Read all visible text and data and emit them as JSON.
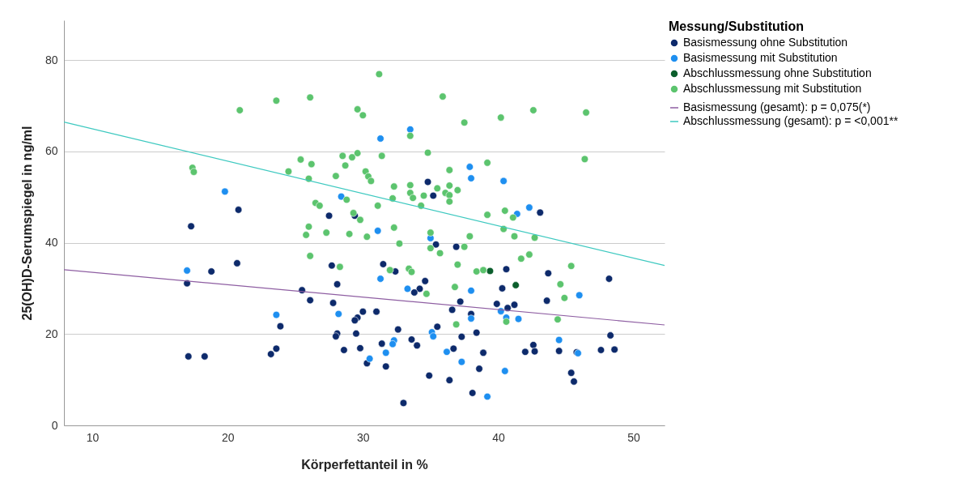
{
  "chart_data": {
    "type": "scatter",
    "xlabel": "Körperfettanteil in %",
    "ylabel": "25(OH)D-Serumspiegel in ng/ml",
    "legend_title": "Messung/Substitution",
    "legend": "right",
    "grid": "y",
    "marker": "circle",
    "xlim": [
      7.9,
      52.3
    ],
    "ylim": [
      0,
      88.7
    ],
    "xticks": [
      10,
      20,
      30,
      40,
      50
    ],
    "yticks": [
      0,
      20,
      40,
      60,
      80
    ],
    "series": [
      {
        "name": "Basismessung ohne Substitution",
        "color": "#0d2a6b",
        "x": [
          17.3,
          20.8,
          34.8,
          35.2,
          27.5,
          29.4,
          35.4,
          36.9,
          43.1,
          17.0,
          18.8,
          20.7,
          17.1,
          18.3,
          23.2,
          27.7,
          31.5,
          32.4,
          34.6,
          34.2,
          33.8,
          37.2,
          36.6,
          38.0,
          38.4,
          25.5,
          26.1,
          27.8,
          28.1,
          23.9,
          30.0,
          29.6,
          29.4,
          31.0,
          28.1,
          28.0,
          29.5,
          32.6,
          35.5,
          33.6,
          34.0,
          31.4,
          31.7,
          29.8,
          28.6,
          30.3,
          23.6,
          36.7,
          37.3,
          34.9,
          36.4,
          38.1,
          33.0,
          40.6,
          43.7,
          48.2,
          40.3,
          43.6,
          39.9,
          40.7,
          41.2,
          48.3,
          38.9,
          42.0,
          42.6,
          42.7,
          44.5,
          45.8,
          47.6,
          48.6,
          38.6,
          45.4,
          45.6
        ],
        "values": [
          43.6,
          47.2,
          53.3,
          50.3,
          45.9,
          45.9,
          39.6,
          39.1,
          46.6,
          31.1,
          33.7,
          35.5,
          15.1,
          15.1,
          15.6,
          35.0,
          35.3,
          33.7,
          31.6,
          29.9,
          29.1,
          27.1,
          25.3,
          24.4,
          20.3,
          29.6,
          27.4,
          26.8,
          30.9,
          21.7,
          24.9,
          23.6,
          23.0,
          24.9,
          20.1,
          19.5,
          20.1,
          21.0,
          21.6,
          18.8,
          17.5,
          17.9,
          12.9,
          16.9,
          16.5,
          13.6,
          16.8,
          16.8,
          19.4,
          10.9,
          9.9,
          7.1,
          4.9,
          34.2,
          33.3,
          32.1,
          30.0,
          27.3,
          26.6,
          25.7,
          26.4,
          19.7,
          15.9,
          16.1,
          17.6,
          16.2,
          16.3,
          16.0,
          16.5,
          16.6,
          12.4,
          11.5,
          9.6
        ]
      },
      {
        "name": "Basismessung mit Substitution",
        "color": "#1e8ff0",
        "x": [
          19.8,
          33.5,
          31.3,
          37.9,
          38.0,
          28.4,
          31.1,
          35.0,
          40.4,
          42.3,
          41.4,
          17.0,
          23.6,
          31.3,
          33.3,
          38.0,
          38.0,
          28.2,
          35.1,
          35.2,
          32.3,
          32.2,
          31.7,
          30.5,
          36.2,
          37.3,
          40.2,
          40.6,
          41.5,
          46.0,
          44.5,
          45.9,
          40.5,
          39.2
        ],
        "values": [
          51.2,
          64.8,
          62.8,
          56.6,
          54.1,
          50.1,
          42.6,
          41.0,
          53.5,
          47.7,
          46.3,
          33.9,
          24.2,
          32.1,
          29.9,
          29.5,
          23.4,
          24.4,
          20.4,
          19.5,
          18.6,
          17.8,
          15.9,
          14.6,
          16.1,
          13.9,
          25.0,
          23.6,
          23.3,
          28.5,
          18.7,
          15.8,
          11.9,
          6.3
        ]
      },
      {
        "name": "Abschlussmessung ohne Substitution",
        "color": "#0b5e2c",
        "x": [
          39.4,
          41.3
        ],
        "values": [
          33.8,
          30.7
        ]
      },
      {
        "name": "Abschlussmessung mit Substitution",
        "color": "#5cc46e",
        "x": [
          20.9,
          17.4,
          17.5,
          31.2,
          23.6,
          26.1,
          35.9,
          29.6,
          30.0,
          37.5,
          33.5,
          34.8,
          31.4,
          29.6,
          29.2,
          28.5,
          25.4,
          26.2,
          28.7,
          24.5,
          26.0,
          28.0,
          30.2,
          30.4,
          30.6,
          36.4,
          32.3,
          33.5,
          35.5,
          36.4,
          37.0,
          36.1,
          36.4,
          36.4,
          33.5,
          33.7,
          34.5,
          32.2,
          34.3,
          31.1,
          28.8,
          26.5,
          26.8,
          29.3,
          29.8,
          26.0,
          25.8,
          27.3,
          29.0,
          30.3,
          32.3,
          35.0,
          37.9,
          32.7,
          37.5,
          40.2,
          42.6,
          46.5,
          46.4,
          39.2,
          39.2,
          40.5,
          41.1,
          40.4,
          41.2,
          42.7,
          26.1,
          28.3,
          32.0,
          33.4,
          33.6,
          34.7,
          35.0,
          35.7,
          37.0,
          36.8,
          36.9,
          38.4,
          38.9,
          41.7,
          42.3,
          45.4,
          44.6,
          44.9,
          40.6,
          44.4
        ],
        "values": [
          69.0,
          56.4,
          55.5,
          76.9,
          71.1,
          71.8,
          72.0,
          69.2,
          67.9,
          66.3,
          63.4,
          59.7,
          59.0,
          59.6,
          58.7,
          59.0,
          58.2,
          57.2,
          56.9,
          55.6,
          54.0,
          54.6,
          55.6,
          54.5,
          53.5,
          55.9,
          52.3,
          52.6,
          51.9,
          52.5,
          51.5,
          50.9,
          50.4,
          49.0,
          50.9,
          49.8,
          50.3,
          49.7,
          48.1,
          48.1,
          49.4,
          48.7,
          48.1,
          46.5,
          45.0,
          43.5,
          41.7,
          42.2,
          41.9,
          41.3,
          43.3,
          42.2,
          41.4,
          39.8,
          39.1,
          67.4,
          69.0,
          68.5,
          58.3,
          57.5,
          46.1,
          47.0,
          45.5,
          43.0,
          41.4,
          41.1,
          37.1,
          34.7,
          34.0,
          34.3,
          33.6,
          28.8,
          38.8,
          37.7,
          35.2,
          30.3,
          22.1,
          33.7,
          34.0,
          36.5,
          37.4,
          34.9,
          30.9,
          27.9,
          22.7,
          23.2
        ]
      },
      {
        "name": "Basismessung (gesamt): p = 0,075(*)",
        "type": "line",
        "marker": "none",
        "color": "#8e5ea2",
        "x": [
          7.9,
          52.3
        ],
        "values": [
          34.1,
          22.0
        ]
      },
      {
        "name": "Abschlussmessung (gesamt): p = <0,001**",
        "type": "line",
        "marker": "none",
        "color": "#3ec9c0",
        "x": [
          7.9,
          52.3
        ],
        "values": [
          66.4,
          35.0
        ]
      }
    ]
  }
}
